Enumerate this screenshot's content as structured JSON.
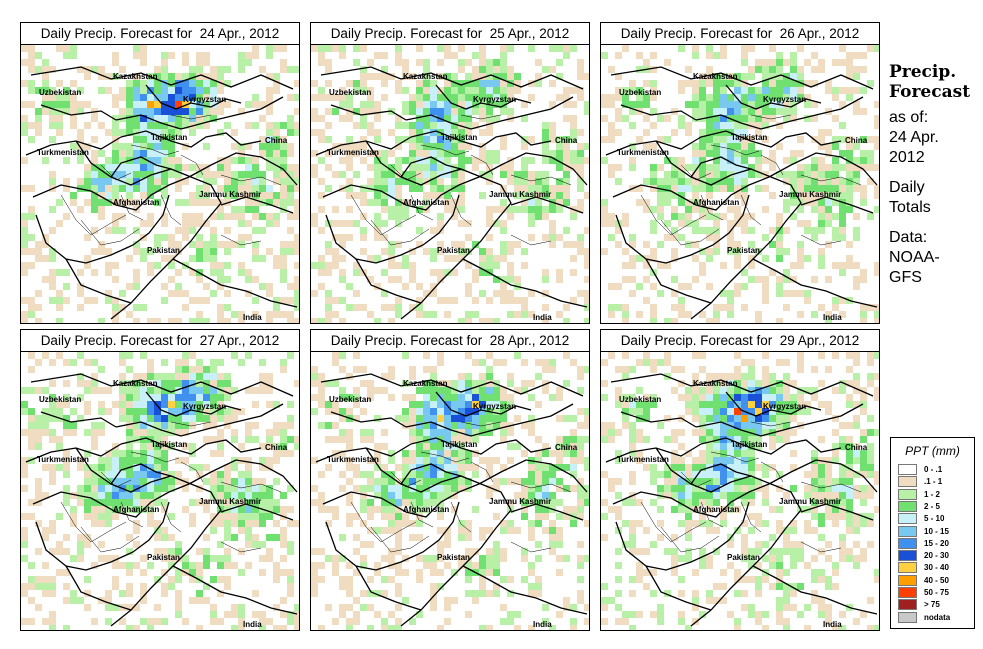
{
  "panels": [
    {
      "title": "Daily Precip. Forecast for  24 Apr., 2012",
      "seed": 11,
      "intensity": 1.0
    },
    {
      "title": "Daily Precip. Forecast for  25 Apr., 2012",
      "seed": 23,
      "intensity": 0.8
    },
    {
      "title": "Daily Precip. Forecast for  26 Apr., 2012",
      "seed": 37,
      "intensity": 0.85
    },
    {
      "title": "Daily Precip. Forecast for  27 Apr., 2012",
      "seed": 41,
      "intensity": 1.0
    },
    {
      "title": "Daily Precip. Forecast for  28 Apr., 2012",
      "seed": 53,
      "intensity": 0.95
    },
    {
      "title": "Daily Precip. Forecast for  29 Apr., 2012",
      "seed": 67,
      "intensity": 1.05
    }
  ],
  "country_labels": {
    "kazakhstan": "Kazakhstan",
    "uzbekistan": "Uzbekistan",
    "kyrgyzstan": "Kyrgyzstan",
    "tajikistan": "Tajikistan",
    "china": "China",
    "turkmenistan": "Turkmenistan",
    "afghanistan": "Afghanistan",
    "jammu_kashmir": "Jammu Kashmir",
    "pakistan": "Pakistan",
    "india": "India"
  },
  "side": {
    "heading1": "Precip.",
    "heading2": "Forecast",
    "line1": "as of:",
    "line2": "24 Apr.",
    "line3": "2012",
    "line4": "Daily",
    "line5": "Totals",
    "line6": "Data:",
    "line7": "NOAA-",
    "line8": "GFS"
  },
  "legend": {
    "title": "PPT (mm)",
    "items": [
      {
        "label": "0 - .1",
        "color": "#ffffff"
      },
      {
        "label": ".1 - 1",
        "color": "#f0dcc0"
      },
      {
        "label": "1 - 2",
        "color": "#b8f0a8"
      },
      {
        "label": "2 - 5",
        "color": "#70e070"
      },
      {
        "label": "5 - 10",
        "color": "#c8f0f8"
      },
      {
        "label": "10 - 15",
        "color": "#78c8f0"
      },
      {
        "label": "15 - 20",
        "color": "#4090f0"
      },
      {
        "label": "20 - 30",
        "color": "#1850d8"
      },
      {
        "label": "30 - 40",
        "color": "#ffd040"
      },
      {
        "label": "40 - 50",
        "color": "#ffa000"
      },
      {
        "label": "50 - 75",
        "color": "#ff4000"
      },
      {
        "label": "> 75",
        "color": "#a02020"
      },
      {
        "label": "nodata",
        "color": "#c8c8c8"
      }
    ]
  }
}
